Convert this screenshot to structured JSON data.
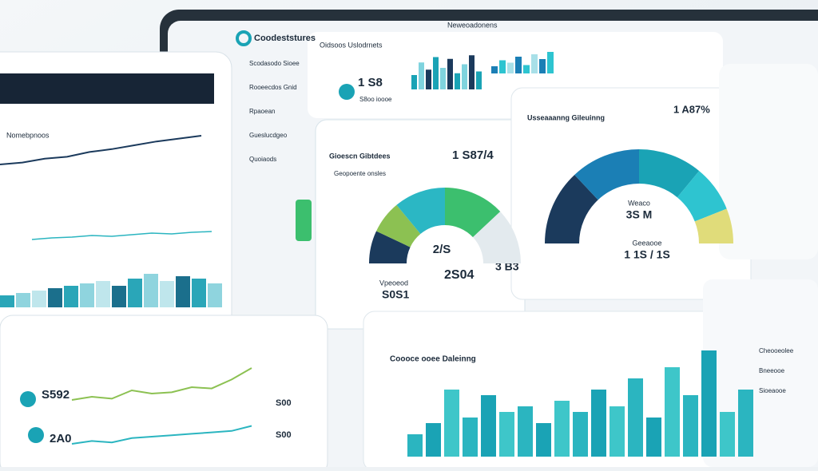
{
  "top_panel": {
    "brand": "Coodeststures",
    "subtitle": "Oidsoos Uslodrnets",
    "heading": "Neweoadonens",
    "kpi": "1 S8",
    "kpi_label": "S8oo ioooe",
    "bars_a": [
      40,
      75,
      55,
      90,
      60,
      85,
      45,
      70,
      95,
      50
    ],
    "bars_b": [
      30,
      55,
      45,
      70,
      35,
      80,
      60,
      90
    ]
  },
  "sidebar": {
    "items": [
      "Scodasodo Sioee",
      "Rooeecdos Gnid",
      "Rpaoean",
      "Gueslucdgeo",
      "Quoiaods"
    ]
  },
  "tablet": {
    "title": "Nomebpnoos",
    "line": [
      20,
      22,
      26,
      28,
      33,
      36,
      40,
      44,
      47,
      50
    ],
    "line2": [
      10,
      12,
      13,
      15,
      14,
      16,
      18,
      17,
      19,
      20
    ],
    "bars": [
      25,
      30,
      35,
      40,
      45,
      50,
      55,
      45,
      60,
      70,
      55,
      65,
      60,
      50
    ]
  },
  "gauge_card": {
    "title": "Gioescn Gibtdees",
    "subtitle": "Geopoente onsles",
    "kpi": "1 S87/4",
    "center": "2/S",
    "left_label": "Vpeoeod",
    "left_value": "S0S1",
    "mid_value": "2S04",
    "right_value": "3 B3",
    "segments": [
      14,
      14,
      22,
      26,
      24
    ]
  },
  "donut_card": {
    "title": "Usseaaanng Gileuinng",
    "kpi": "1 A87%",
    "center_label": "Weaco",
    "center_value": "3S M",
    "bottom_label": "Geeaooe",
    "bottom_value": "1 1S / 1S",
    "segments": [
      26,
      24,
      22,
      16,
      12
    ]
  },
  "bar_card": {
    "title": "Coooce ooee Daleinng",
    "bars": [
      20,
      30,
      60,
      35,
      55,
      40,
      45,
      30,
      50,
      40,
      60,
      45,
      70,
      35,
      80,
      55,
      95,
      40,
      60
    ]
  },
  "line_card": {
    "value1": "S592",
    "value2": "2A0",
    "side1": "S00",
    "side2": "S00",
    "green": [
      30,
      35,
      32,
      45,
      40,
      42,
      50,
      48,
      62,
      80
    ],
    "teal": [
      10,
      14,
      12,
      18,
      20,
      22,
      24,
      26,
      28,
      35
    ]
  },
  "right_panel": {
    "labels": [
      "Cheooeolee",
      "Bneeooe",
      "Sioeaooe"
    ]
  }
}
